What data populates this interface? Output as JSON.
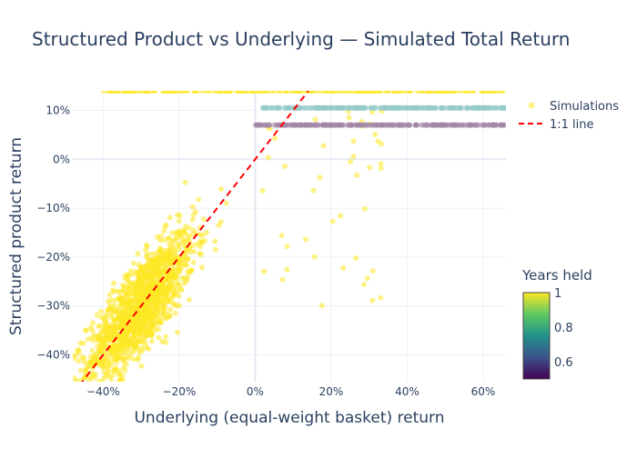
{
  "chart_data": {
    "type": "scatter",
    "title": "Structured Product vs Underlying — Simulated Total Return",
    "xlabel": "Underlying (equal-weight basket) return",
    "ylabel": "Structured product return",
    "xlim": [
      -0.48,
      0.66
    ],
    "ylim": [
      -0.455,
      0.14
    ],
    "x_ticks": [
      {
        "value": -0.4,
        "label": "−40%"
      },
      {
        "value": -0.2,
        "label": "−20%"
      },
      {
        "value": 0.0,
        "label": "0%"
      },
      {
        "value": 0.2,
        "label": "20%"
      },
      {
        "value": 0.4,
        "label": "40%"
      },
      {
        "value": 0.6,
        "label": "60%"
      }
    ],
    "y_ticks": [
      {
        "value": 0.1,
        "label": "10%"
      },
      {
        "value": 0.0,
        "label": "0%"
      },
      {
        "value": -0.1,
        "label": "−10%"
      },
      {
        "value": -0.2,
        "label": "−20%"
      },
      {
        "value": -0.3,
        "label": "−30%"
      },
      {
        "value": -0.4,
        "label": "−40%"
      }
    ],
    "grid": true,
    "legend": {
      "position": "top-right",
      "entries": [
        {
          "label": "Simulations",
          "kind": "marker",
          "color": "#fde725"
        },
        {
          "label": "1:1 line",
          "kind": "dashed-line",
          "color": "#ff0000"
        }
      ]
    },
    "colorbar": {
      "title": "Years held",
      "range": [
        0.5,
        1.0
      ],
      "ticks": [
        {
          "value": 1.0,
          "label": "1"
        },
        {
          "value": 0.8,
          "label": "0.8"
        },
        {
          "value": 0.6,
          "label": "0.6"
        }
      ],
      "colorscale": [
        "#440154",
        "#3b528b",
        "#21918c",
        "#5ec962",
        "#fde725"
      ]
    },
    "series": [
      {
        "name": "Simulations",
        "kind": "scatter",
        "color_by": "years_held",
        "groups": [
          {
            "years_held": 1.0,
            "color": "#fde725",
            "shape": "cloud",
            "x_mean": -0.3,
            "y_mean": -0.3,
            "sd_x": 0.07,
            "sd_y": 0.045,
            "count": 1400
          },
          {
            "years_held": 1.0,
            "color": "#fde725",
            "shape": "upper-scatter",
            "x_range": [
              0.0,
              0.35
            ],
            "y_range": [
              -0.35,
              0.1
            ],
            "count": 45
          },
          {
            "years_held": 1.0,
            "color": "#fde725",
            "shape": "autocall-line",
            "y": 0.14,
            "x_range": [
              -0.4,
              0.66
            ],
            "count": 300
          },
          {
            "years_held": 0.75,
            "color": "#93cbc8",
            "shape": "autocall-line",
            "y": 0.105,
            "x_range": [
              0.02,
              0.66
            ],
            "count": 260
          },
          {
            "years_held": 0.5,
            "color": "#a387a8",
            "shape": "autocall-line",
            "y": 0.07,
            "x_range": [
              0.0,
              0.66
            ],
            "count": 260
          }
        ]
      },
      {
        "name": "1:1 line",
        "kind": "line",
        "color": "#ff0000",
        "dash": "dashed",
        "x": [
          -0.48,
          0.14
        ],
        "y": [
          -0.48,
          0.14
        ]
      }
    ]
  }
}
